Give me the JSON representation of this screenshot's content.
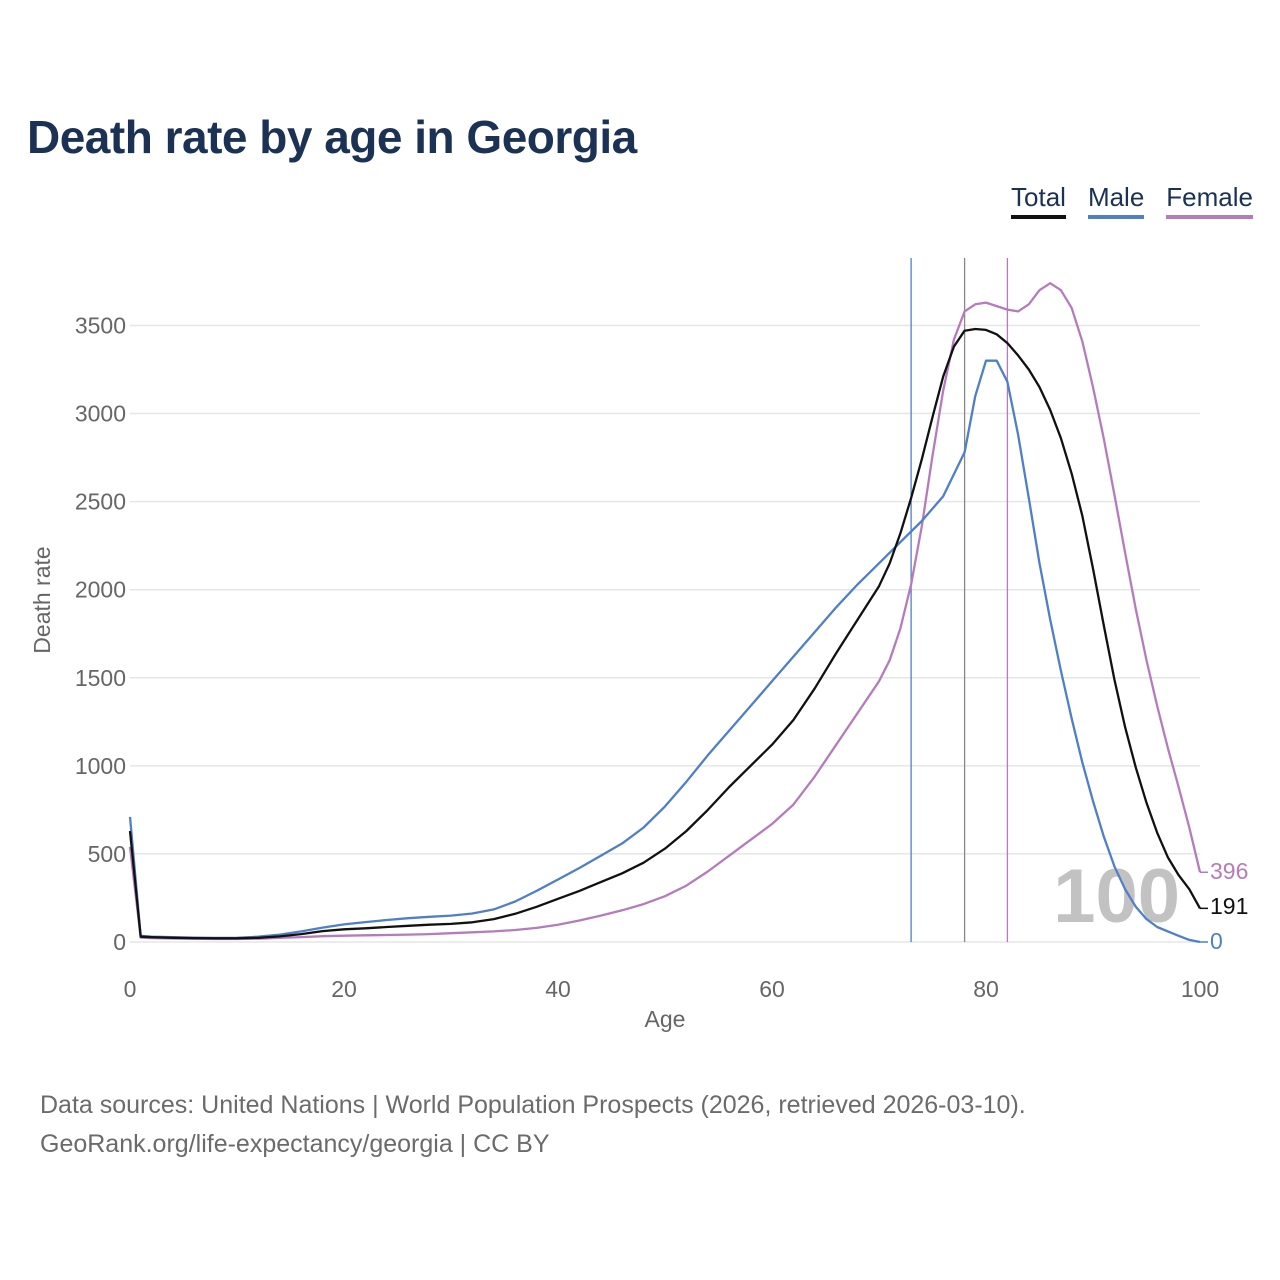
{
  "title": "Death rate by age in Georgia",
  "legend": {
    "total": "Total",
    "male": "Male",
    "female": "Female"
  },
  "colors": {
    "total": "#111111",
    "male": "#4f7fc7",
    "female": "#b57bbd",
    "grid": "#e6e6e6",
    "axis_text": "#666666",
    "watermark": "#c2c2c2",
    "title": "#1c3254"
  },
  "chart_data": {
    "type": "line",
    "title": "Death rate by age in Georgia",
    "xlabel": "Age",
    "ylabel": "Death rate",
    "xlim": [
      0,
      100
    ],
    "ylim": [
      0,
      3900
    ],
    "xticks": [
      0,
      20,
      40,
      60,
      80,
      100
    ],
    "yticks": [
      0,
      500,
      1000,
      1500,
      2000,
      2500,
      3000,
      3500
    ],
    "year_label": "100",
    "reference_lines": [
      {
        "series": "Male",
        "age": 73
      },
      {
        "series": "Total",
        "age": 78
      },
      {
        "series": "Female",
        "age": 82
      }
    ],
    "series": [
      {
        "name": "Total",
        "key": "total",
        "end_label": "191",
        "points": [
          [
            0,
            630
          ],
          [
            1,
            30
          ],
          [
            2,
            27
          ],
          [
            4,
            24
          ],
          [
            6,
            22
          ],
          [
            8,
            21
          ],
          [
            10,
            21
          ],
          [
            12,
            24
          ],
          [
            14,
            32
          ],
          [
            16,
            45
          ],
          [
            18,
            62
          ],
          [
            20,
            72
          ],
          [
            22,
            78
          ],
          [
            24,
            85
          ],
          [
            26,
            92
          ],
          [
            28,
            98
          ],
          [
            30,
            103
          ],
          [
            32,
            112
          ],
          [
            34,
            130
          ],
          [
            36,
            160
          ],
          [
            38,
            200
          ],
          [
            40,
            245
          ],
          [
            42,
            290
          ],
          [
            44,
            340
          ],
          [
            46,
            390
          ],
          [
            48,
            450
          ],
          [
            50,
            530
          ],
          [
            52,
            630
          ],
          [
            54,
            750
          ],
          [
            56,
            880
          ],
          [
            58,
            1000
          ],
          [
            60,
            1120
          ],
          [
            62,
            1260
          ],
          [
            64,
            1440
          ],
          [
            66,
            1640
          ],
          [
            68,
            1830
          ],
          [
            70,
            2020
          ],
          [
            71,
            2150
          ],
          [
            72,
            2320
          ],
          [
            73,
            2520
          ],
          [
            74,
            2740
          ],
          [
            75,
            2980
          ],
          [
            76,
            3210
          ],
          [
            77,
            3380
          ],
          [
            78,
            3470
          ],
          [
            79,
            3480
          ],
          [
            80,
            3475
          ],
          [
            81,
            3450
          ],
          [
            82,
            3400
          ],
          [
            83,
            3330
          ],
          [
            84,
            3250
          ],
          [
            85,
            3150
          ],
          [
            86,
            3020
          ],
          [
            87,
            2860
          ],
          [
            88,
            2660
          ],
          [
            89,
            2420
          ],
          [
            90,
            2120
          ],
          [
            91,
            1800
          ],
          [
            92,
            1490
          ],
          [
            93,
            1220
          ],
          [
            94,
            990
          ],
          [
            95,
            790
          ],
          [
            96,
            620
          ],
          [
            97,
            480
          ],
          [
            98,
            380
          ],
          [
            99,
            300
          ],
          [
            100,
            191
          ]
        ]
      },
      {
        "name": "Male",
        "key": "male",
        "end_label": "0",
        "points": [
          [
            0,
            710
          ],
          [
            1,
            35
          ],
          [
            2,
            30
          ],
          [
            4,
            27
          ],
          [
            6,
            25
          ],
          [
            8,
            23
          ],
          [
            10,
            24
          ],
          [
            12,
            30
          ],
          [
            14,
            42
          ],
          [
            16,
            60
          ],
          [
            18,
            82
          ],
          [
            20,
            100
          ],
          [
            22,
            113
          ],
          [
            24,
            125
          ],
          [
            26,
            135
          ],
          [
            28,
            143
          ],
          [
            30,
            150
          ],
          [
            32,
            162
          ],
          [
            34,
            185
          ],
          [
            36,
            230
          ],
          [
            38,
            290
          ],
          [
            40,
            355
          ],
          [
            42,
            420
          ],
          [
            44,
            490
          ],
          [
            46,
            560
          ],
          [
            48,
            650
          ],
          [
            50,
            770
          ],
          [
            52,
            910
          ],
          [
            54,
            1060
          ],
          [
            56,
            1200
          ],
          [
            58,
            1340
          ],
          [
            60,
            1480
          ],
          [
            62,
            1620
          ],
          [
            64,
            1760
          ],
          [
            66,
            1900
          ],
          [
            68,
            2030
          ],
          [
            70,
            2150
          ],
          [
            72,
            2270
          ],
          [
            74,
            2390
          ],
          [
            76,
            2530
          ],
          [
            78,
            2780
          ],
          [
            79,
            3100
          ],
          [
            80,
            3300
          ],
          [
            81,
            3300
          ],
          [
            82,
            3180
          ],
          [
            83,
            2880
          ],
          [
            84,
            2520
          ],
          [
            85,
            2150
          ],
          [
            86,
            1830
          ],
          [
            87,
            1540
          ],
          [
            88,
            1270
          ],
          [
            89,
            1020
          ],
          [
            90,
            800
          ],
          [
            91,
            600
          ],
          [
            92,
            430
          ],
          [
            93,
            300
          ],
          [
            94,
            200
          ],
          [
            95,
            130
          ],
          [
            96,
            85
          ],
          [
            97,
            60
          ],
          [
            98,
            35
          ],
          [
            99,
            12
          ],
          [
            100,
            0
          ]
        ]
      },
      {
        "name": "Female",
        "key": "female",
        "end_label": "396",
        "points": [
          [
            0,
            540
          ],
          [
            1,
            25
          ],
          [
            2,
            22
          ],
          [
            4,
            20
          ],
          [
            6,
            18
          ],
          [
            8,
            17
          ],
          [
            10,
            17
          ],
          [
            12,
            19
          ],
          [
            14,
            23
          ],
          [
            16,
            28
          ],
          [
            18,
            33
          ],
          [
            20,
            36
          ],
          [
            22,
            38
          ],
          [
            24,
            40
          ],
          [
            26,
            42
          ],
          [
            28,
            45
          ],
          [
            30,
            50
          ],
          [
            32,
            55
          ],
          [
            34,
            60
          ],
          [
            36,
            68
          ],
          [
            38,
            80
          ],
          [
            40,
            98
          ],
          [
            42,
            122
          ],
          [
            44,
            150
          ],
          [
            46,
            180
          ],
          [
            48,
            215
          ],
          [
            50,
            260
          ],
          [
            52,
            320
          ],
          [
            54,
            400
          ],
          [
            56,
            490
          ],
          [
            58,
            580
          ],
          [
            60,
            670
          ],
          [
            62,
            780
          ],
          [
            64,
            940
          ],
          [
            66,
            1120
          ],
          [
            68,
            1300
          ],
          [
            70,
            1480
          ],
          [
            71,
            1600
          ],
          [
            72,
            1780
          ],
          [
            73,
            2030
          ],
          [
            74,
            2360
          ],
          [
            75,
            2760
          ],
          [
            76,
            3130
          ],
          [
            77,
            3420
          ],
          [
            78,
            3580
          ],
          [
            79,
            3620
          ],
          [
            80,
            3630
          ],
          [
            81,
            3610
          ],
          [
            82,
            3590
          ],
          [
            83,
            3580
          ],
          [
            84,
            3620
          ],
          [
            85,
            3700
          ],
          [
            86,
            3740
          ],
          [
            87,
            3700
          ],
          [
            88,
            3600
          ],
          [
            89,
            3410
          ],
          [
            90,
            3150
          ],
          [
            91,
            2860
          ],
          [
            92,
            2540
          ],
          [
            93,
            2210
          ],
          [
            94,
            1890
          ],
          [
            95,
            1600
          ],
          [
            96,
            1340
          ],
          [
            97,
            1100
          ],
          [
            98,
            880
          ],
          [
            99,
            650
          ],
          [
            100,
            396
          ]
        ]
      }
    ]
  },
  "footer": {
    "line1": "Data sources: United Nations | World Population Prospects (2026, retrieved 2026-03-10).",
    "line2": "GeoRank.org/life-expectancy/georgia | CC BY"
  }
}
